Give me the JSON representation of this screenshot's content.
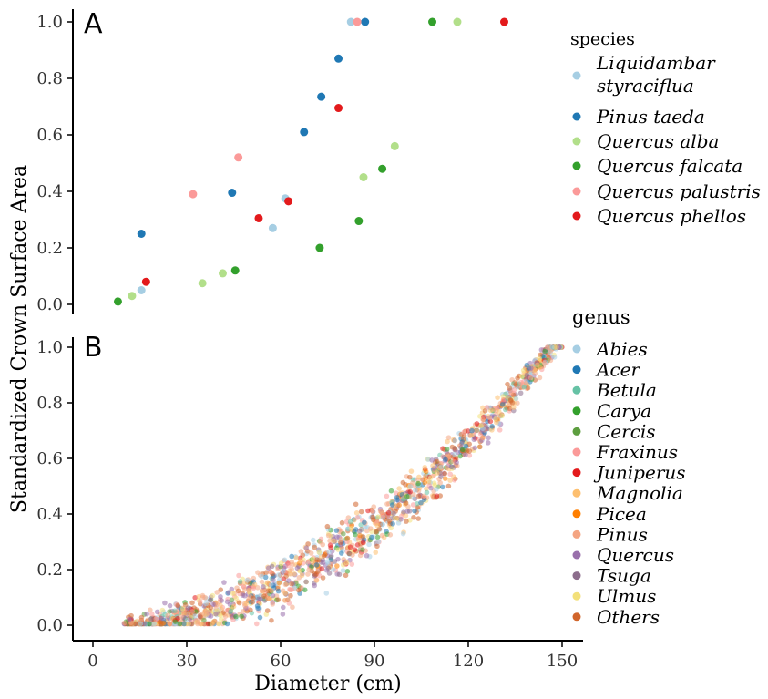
{
  "figure": {
    "y_axis_title": "Standardized Crown Surface Area",
    "x_axis_title": "Diameter (cm)"
  },
  "chart_data": [
    {
      "panel": "A",
      "type": "scatter",
      "xlim": [
        -12,
        155
      ],
      "ylim": [
        -0.04,
        1.04
      ],
      "x_ticks": [
        0,
        30,
        60,
        90,
        120,
        150
      ],
      "y_ticks": [
        0.0,
        0.2,
        0.4,
        0.6,
        0.8,
        1.0
      ],
      "y_tick_labels": [
        "0.0",
        "0.2",
        "0.4",
        "0.6",
        "0.8",
        "1.0"
      ],
      "grid": false,
      "legend": {
        "title": "species",
        "placement": "right",
        "entries": [
          {
            "label": "Liquidambar styraciflua",
            "lines": [
              "Liquidambar",
              "styraciflua"
            ],
            "color": "#a6cee3"
          },
          {
            "label": "Pinus taeda",
            "lines": [
              "Pinus taeda"
            ],
            "color": "#1f78b4"
          },
          {
            "label": "Quercus alba",
            "lines": [
              "Quercus alba"
            ],
            "color": "#b2df8a"
          },
          {
            "label": "Quercus falcata",
            "lines": [
              "Quercus falcata"
            ],
            "color": "#33a02c"
          },
          {
            "label": "Quercus palustris",
            "lines": [
              "Quercus palustris"
            ],
            "color": "#fb9a99"
          },
          {
            "label": "Quercus phellos",
            "lines": [
              "Quercus phellos"
            ],
            "color": "#e31a1c"
          }
        ]
      },
      "series": [
        {
          "name": "Liquidambar styraciflua",
          "color": "#a6cee3",
          "points": [
            [
              15.5,
              0.05
            ],
            [
              57.5,
              0.27
            ],
            [
              61.5,
              0.375
            ],
            [
              82.5,
              1.0
            ]
          ]
        },
        {
          "name": "Pinus taeda",
          "color": "#1f78b4",
          "points": [
            [
              15.5,
              0.25
            ],
            [
              44.5,
              0.395
            ],
            [
              67.5,
              0.61
            ],
            [
              73.0,
              0.735
            ],
            [
              78.5,
              0.87
            ],
            [
              87.0,
              1.0
            ]
          ]
        },
        {
          "name": "Quercus alba",
          "color": "#b2df8a",
          "points": [
            [
              12.5,
              0.03
            ],
            [
              35.0,
              0.075
            ],
            [
              41.5,
              0.11
            ],
            [
              86.5,
              0.45
            ],
            [
              96.5,
              0.56
            ],
            [
              116.5,
              1.0
            ]
          ]
        },
        {
          "name": "Quercus falcata",
          "color": "#33a02c",
          "points": [
            [
              8.0,
              0.01
            ],
            [
              45.5,
              0.12
            ],
            [
              72.5,
              0.2
            ],
            [
              85.0,
              0.295
            ],
            [
              92.5,
              0.48
            ],
            [
              108.5,
              1.0
            ]
          ]
        },
        {
          "name": "Quercus palustris",
          "color": "#fb9a99",
          "points": [
            [
              32.0,
              0.39
            ],
            [
              46.5,
              0.52
            ],
            [
              84.5,
              1.0
            ]
          ]
        },
        {
          "name": "Quercus phellos",
          "color": "#e31a1c",
          "points": [
            [
              17.0,
              0.08
            ],
            [
              53.0,
              0.305
            ],
            [
              62.5,
              0.365
            ],
            [
              78.5,
              0.695
            ],
            [
              131.5,
              1.0
            ]
          ]
        }
      ]
    },
    {
      "panel": "B",
      "type": "scatter",
      "xlim": [
        -12,
        155
      ],
      "ylim": [
        -0.04,
        1.04
      ],
      "x_ticks": [
        0,
        30,
        60,
        90,
        120,
        150
      ],
      "x_tick_labels": [
        "0",
        "30",
        "60",
        "90",
        "120",
        "150"
      ],
      "y_ticks": [
        0.0,
        0.2,
        0.4,
        0.6,
        0.8,
        1.0
      ],
      "y_tick_labels": [
        "0.0",
        "0.2",
        "0.4",
        "0.6",
        "0.8",
        "1.0"
      ],
      "grid": false,
      "curve_note": "dense semi-transparent point cloud following roughly y = ((x - 10) / 137)^1.9 from about x = 10 to x = 150",
      "x_range": [
        10,
        150
      ],
      "legend": {
        "title": "genus",
        "placement": "right",
        "entries": [
          {
            "label": "Abies",
            "color": "#a6cee3"
          },
          {
            "label": "Acer",
            "color": "#1f78b4"
          },
          {
            "label": "Betula",
            "color": "#66c2a5"
          },
          {
            "label": "Carya",
            "color": "#33a02c"
          },
          {
            "label": "Cercis",
            "color": "#5d9e3f"
          },
          {
            "label": "Fraxinus",
            "color": "#fb9a99"
          },
          {
            "label": "Juniperus",
            "color": "#e31a1c"
          },
          {
            "label": "Magnolia",
            "color": "#fdbf6f"
          },
          {
            "label": "Picea",
            "color": "#ff7f00"
          },
          {
            "label": "Pinus",
            "color": "#f4a582"
          },
          {
            "label": "Quercus",
            "color": "#9970ab"
          },
          {
            "label": "Tsuga",
            "color": "#8c6d8c"
          },
          {
            "label": "Ulmus",
            "color": "#f3e07a"
          },
          {
            "label": "Others",
            "color": "#d1652b"
          }
        ]
      }
    }
  ]
}
